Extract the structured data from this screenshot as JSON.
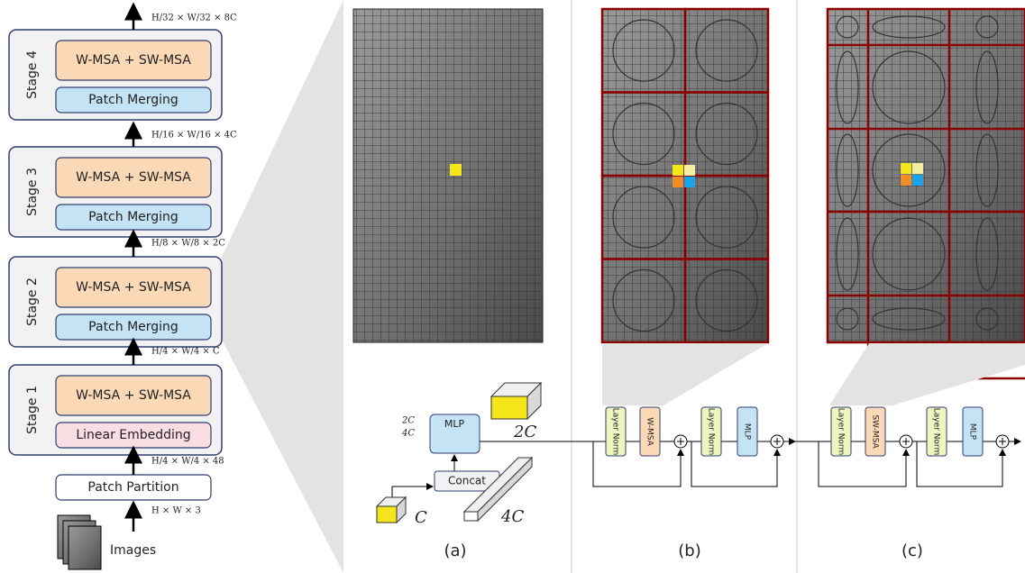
{
  "stages": [
    {
      "name": "Stage 4",
      "attention": "W-MSA + SW-MSA",
      "module": "Patch Merging"
    },
    {
      "name": "Stage 3",
      "attention": "W-MSA + SW-MSA",
      "module": "Patch Merging"
    },
    {
      "name": "Stage 2",
      "attention": "W-MSA + SW-MSA",
      "module": "Patch Merging"
    },
    {
      "name": "Stage 1",
      "attention": "W-MSA + SW-MSA",
      "module": "Linear Embedding"
    }
  ],
  "dims": [
    "H/32 × W/32 × 8C",
    "H/16 × W/16 × 4C",
    "H/8 × W/8 × 2C",
    "H/4 × W/4 × C",
    "H/4 × W/4 × 48",
    "H × W × 3"
  ],
  "patch_partition": "Patch Partition",
  "images": "Images",
  "panel_a": {
    "caption": "(a)",
    "mlp": "MLP",
    "concat": "Concat",
    "mlp_out": "2C",
    "mlp_in": "4C",
    "out_dim": "2C",
    "in_dim": "C",
    "cat_dim": "4C"
  },
  "panel_b": {
    "caption": "(b)",
    "blocks": [
      "Layer Norm",
      "W-MSA",
      "Layer Norm",
      "MLP"
    ]
  },
  "panel_c": {
    "caption": "(c)",
    "blocks": [
      "Layer Norm",
      "SW-MSA",
      "Layer Norm",
      "MLP"
    ]
  }
}
